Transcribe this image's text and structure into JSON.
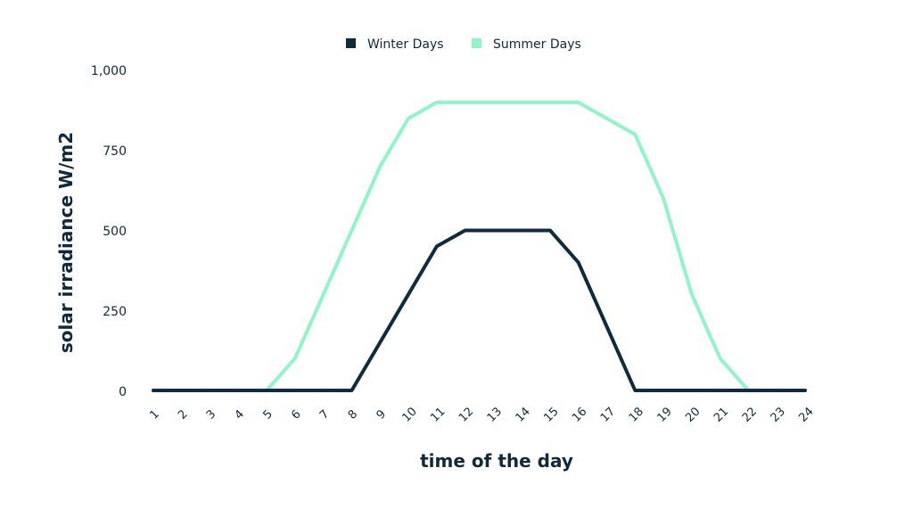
{
  "chart_data": {
    "type": "line",
    "xlabel": "time of the day",
    "ylabel": "solar irradiance W/m2",
    "ylim": [
      0,
      1000
    ],
    "yticks": [
      "0",
      "250",
      "500",
      "750",
      "1,000"
    ],
    "grid": false,
    "legend_position": "top-center",
    "x": [
      "1",
      "2",
      "3",
      "4",
      "5",
      "6",
      "7",
      "8",
      "9",
      "10",
      "11",
      "12",
      "13",
      "14",
      "15",
      "16",
      "17",
      "18",
      "19",
      "20",
      "21",
      "22",
      "23",
      "24"
    ],
    "series": [
      {
        "name": "Winter Days",
        "color": "#0f2b3e",
        "values": [
          0,
          0,
          0,
          0,
          0,
          0,
          0,
          0,
          150,
          300,
          450,
          500,
          500,
          500,
          500,
          400,
          200,
          0,
          0,
          0,
          0,
          0,
          0,
          0
        ]
      },
      {
        "name": "Summer Days",
        "color": "#8ff5c9",
        "values": [
          0,
          0,
          0,
          0,
          0,
          100,
          300,
          500,
          700,
          850,
          900,
          900,
          900,
          900,
          900,
          900,
          850,
          800,
          600,
          300,
          100,
          0,
          0,
          0
        ]
      }
    ]
  }
}
